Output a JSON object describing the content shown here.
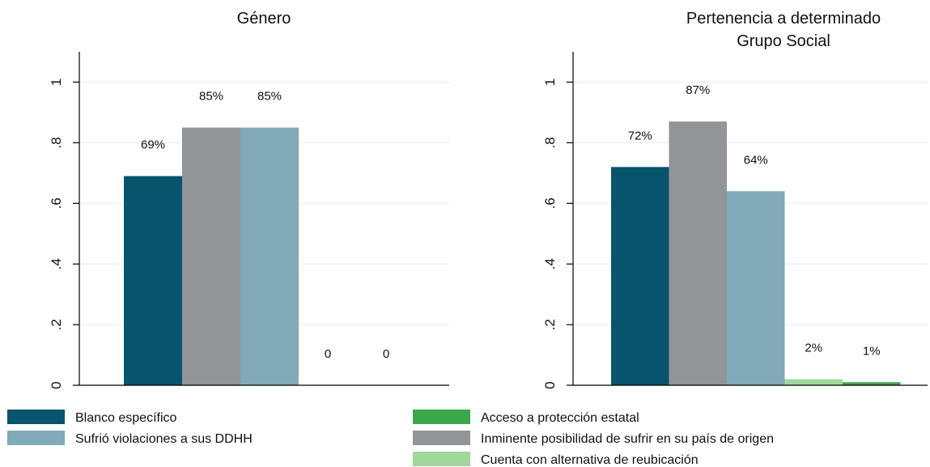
{
  "chart_data": {
    "type": "bar",
    "ylim": [
      0,
      1.1
    ],
    "yticks": [
      0,
      0.2,
      0.4,
      0.6,
      0.8,
      1
    ],
    "ytick_labels": [
      "0",
      ".2",
      ".4",
      ".6",
      ".8",
      "1"
    ],
    "grid": true,
    "legend_placement": "bottom",
    "series_colors": {
      "Blanco específico": "#08546c",
      "Inminente posibilidad de sufrir en su país de origen": "#939497",
      "Sufrió violaciones a sus DDHH": "#80aab8",
      "Cuenta con alternativa de reubicación": "#a1d79b",
      "Acceso a protección estatal": "#3ca64b"
    },
    "panels": [
      {
        "title_lines": [
          "Género"
        ],
        "categories": [
          "Blanco específico",
          "Inminente posibilidad de sufrir en su país de origen",
          "Sufrió violaciones a sus DDHH",
          "Cuenta con alternativa de reubicación",
          "Acceso a protección estatal"
        ],
        "values": [
          0.69,
          0.85,
          0.85,
          0,
          0
        ],
        "labels": [
          "69%",
          "85%",
          "85%",
          "0",
          "0"
        ]
      },
      {
        "title_lines": [
          "Pertenencia a determinado",
          "Grupo Social"
        ],
        "categories": [
          "Blanco específico",
          "Inminente posibilidad de sufrir en su país de origen",
          "Sufrió violaciones a sus DDHH",
          "Cuenta con alternativa de reubicación",
          "Acceso a protección estatal"
        ],
        "values": [
          0.72,
          0.87,
          0.64,
          0.02,
          0.01
        ],
        "labels": [
          "72%",
          "87%",
          "64%",
          "2%",
          "1%"
        ]
      }
    ],
    "legend": [
      "Blanco específico",
      "Sufrió violaciones a sus DDHH",
      "Acceso a protección estatal",
      "Inminente posibilidad de sufrir en su país de origen",
      "Cuenta con alternativa de reubicación"
    ]
  }
}
